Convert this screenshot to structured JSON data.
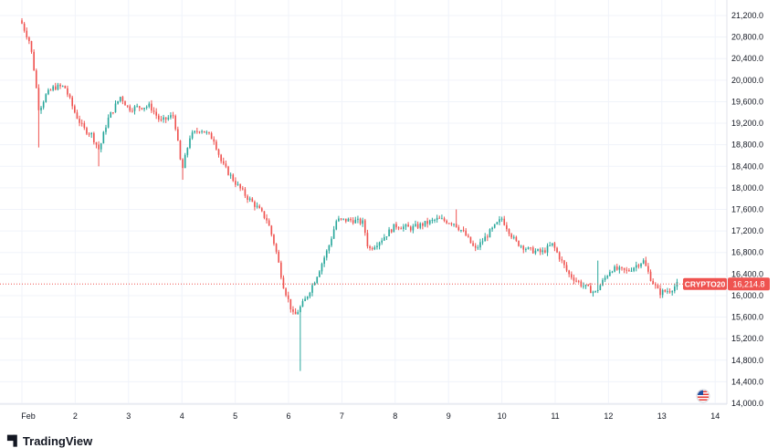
{
  "brand": {
    "name": "TradingView",
    "icon": "tradingview-logo-icon"
  },
  "colors": {
    "up": "#26a69a",
    "down": "#ef5350",
    "price_line": "#ef5350",
    "label_bg": "#ef5350",
    "grid": "#f0f3fa"
  },
  "flag_icon": "us-flag-icon",
  "chart_data": {
    "type": "candlestick",
    "symbol_label": "CRYPTO20",
    "last_price": 16214.8,
    "last_price_label": "16,214.8",
    "y_ticks": [
      "21,200.0",
      "20,800.0",
      "20,400.0",
      "20,000.0",
      "19,600.0",
      "19,200.0",
      "18,800.0",
      "18,400.0",
      "18,000.0",
      "17,600.0",
      "17,200.0",
      "16,800.0",
      "16,400.0",
      "16,000.0",
      "15,600.0",
      "15,200.0",
      "14,800.0",
      "14,400.0",
      "14,000.0"
    ],
    "y_tick_values": [
      21200,
      20800,
      20400,
      20000,
      19600,
      19200,
      18800,
      18400,
      18000,
      17600,
      17200,
      16800,
      16400,
      16000,
      15600,
      15200,
      14800,
      14400,
      14000
    ],
    "ylim": [
      13980,
      21350
    ],
    "x_ticks": [
      "Feb",
      "2",
      "3",
      "4",
      "5",
      "6",
      "7",
      "8",
      "9",
      "10",
      "11",
      "12",
      "13",
      "14"
    ],
    "x_tick_days": [
      1,
      2,
      3,
      4,
      5,
      6,
      7,
      8,
      9,
      10,
      11,
      12,
      13,
      14
    ],
    "xlim": [
      0.9,
      14.2
    ],
    "grid": true,
    "anchors": [
      [
        1.0,
        21050
      ],
      [
        1.15,
        20700
      ],
      [
        1.22,
        20250
      ],
      [
        1.32,
        19450
      ],
      [
        1.45,
        19720
      ],
      [
        1.6,
        19870
      ],
      [
        1.8,
        19880
      ],
      [
        2.0,
        19380
      ],
      [
        2.15,
        19100
      ],
      [
        2.3,
        19000
      ],
      [
        2.45,
        18700
      ],
      [
        2.6,
        19250
      ],
      [
        2.85,
        19700
      ],
      [
        3.0,
        19470
      ],
      [
        3.2,
        19500
      ],
      [
        3.4,
        19520
      ],
      [
        3.6,
        19230
      ],
      [
        3.85,
        19350
      ],
      [
        4.0,
        18300
      ],
      [
        4.15,
        18950
      ],
      [
        4.35,
        19100
      ],
      [
        4.6,
        18900
      ],
      [
        4.75,
        18450
      ],
      [
        5.0,
        18100
      ],
      [
        5.2,
        17850
      ],
      [
        5.4,
        17650
      ],
      [
        5.6,
        17400
      ],
      [
        5.75,
        16900
      ],
      [
        5.9,
        16200
      ],
      [
        6.1,
        15600
      ],
      [
        6.3,
        15900
      ],
      [
        6.5,
        16300
      ],
      [
        6.75,
        16900
      ],
      [
        6.9,
        17400
      ],
      [
        7.2,
        17400
      ],
      [
        7.4,
        17350
      ],
      [
        7.5,
        16850
      ],
      [
        7.75,
        17050
      ],
      [
        8.0,
        17300
      ],
      [
        8.3,
        17250
      ],
      [
        8.6,
        17350
      ],
      [
        8.8,
        17420
      ],
      [
        9.1,
        17350
      ],
      [
        9.3,
        17150
      ],
      [
        9.5,
        16850
      ],
      [
        9.75,
        17150
      ],
      [
        10.0,
        17430
      ],
      [
        10.25,
        17000
      ],
      [
        10.5,
        16850
      ],
      [
        10.75,
        16800
      ],
      [
        10.95,
        16950
      ],
      [
        11.25,
        16400
      ],
      [
        11.5,
        16200
      ],
      [
        11.75,
        16050
      ],
      [
        12.05,
        16500
      ],
      [
        12.35,
        16450
      ],
      [
        12.65,
        16650
      ],
      [
        12.8,
        16300
      ],
      [
        12.95,
        16050
      ],
      [
        13.15,
        16100
      ],
      [
        13.3,
        16214.8
      ]
    ]
  }
}
